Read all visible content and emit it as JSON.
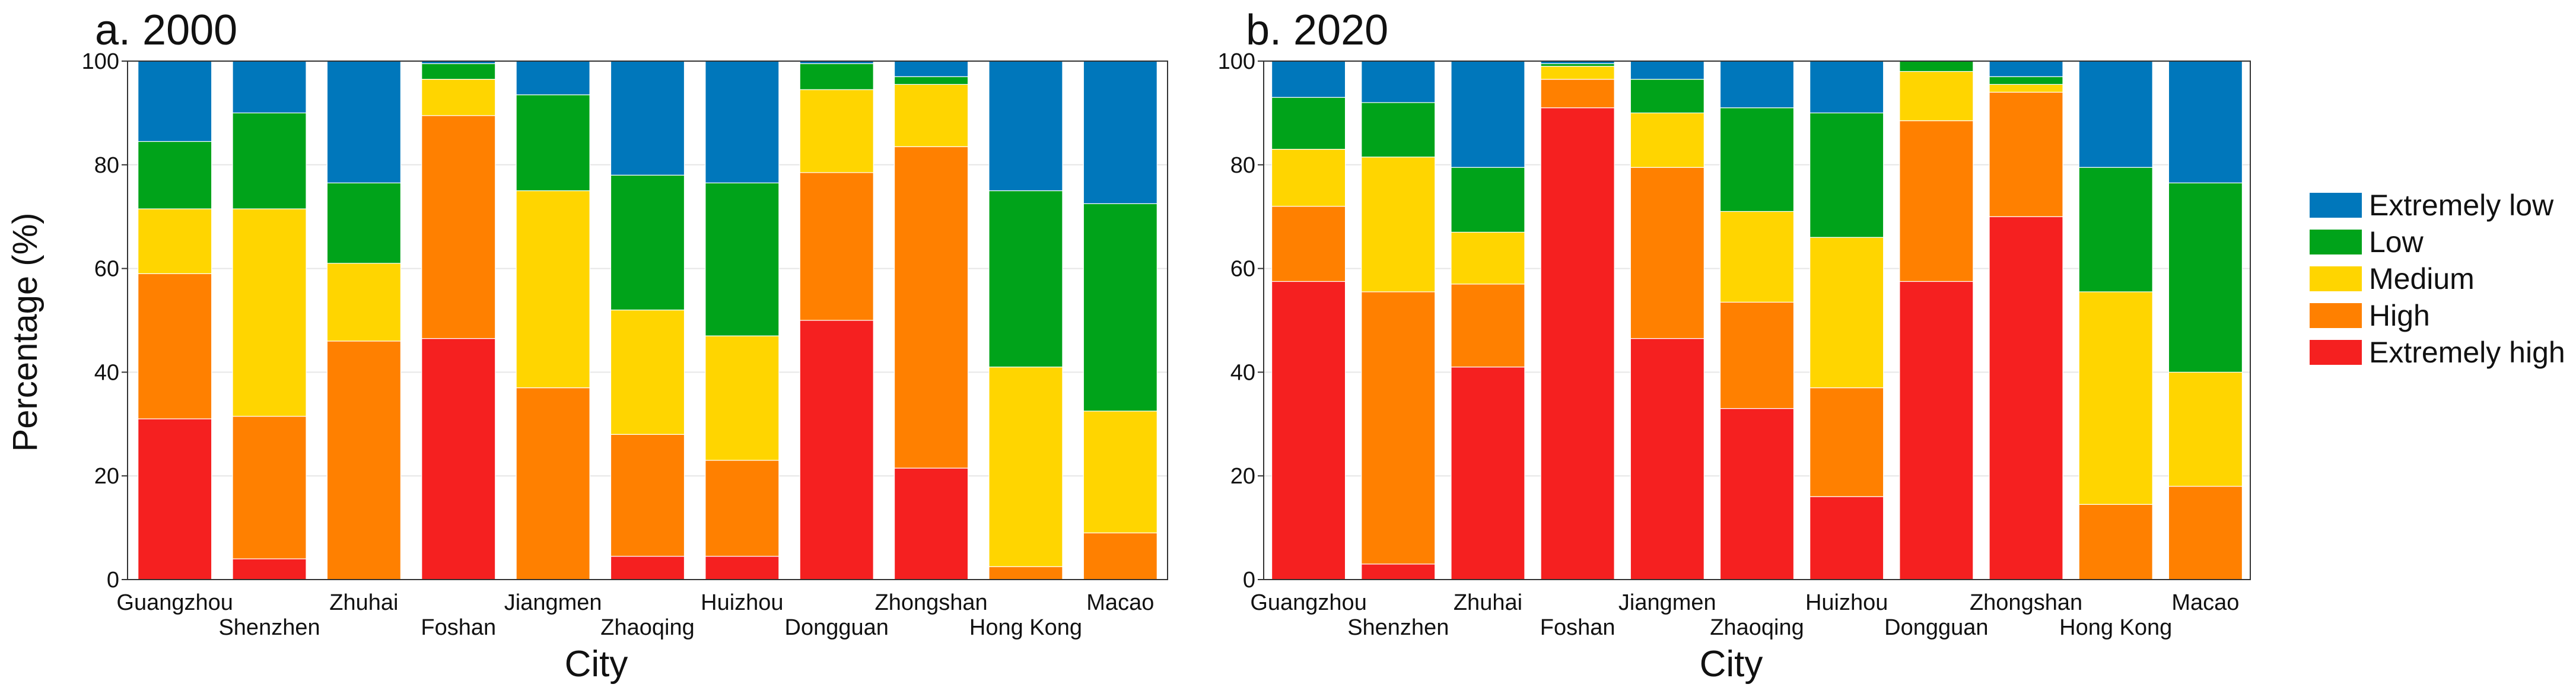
{
  "figure": {
    "ylabel": "Percentage (%)",
    "legend_title": ""
  },
  "legend": [
    {
      "name": "Extremely low",
      "color": "#0077BB"
    },
    {
      "name": "Low",
      "color": "#00A31A"
    },
    {
      "name": "Medium",
      "color": "#FFD500"
    },
    {
      "name": "High",
      "color": "#FF8000"
    },
    {
      "name": "Extremely high",
      "color": "#F52020"
    }
  ],
  "chart_data": [
    {
      "type": "bar",
      "stacked": true,
      "title": "a. 2000",
      "xlabel": "City",
      "ylabel": "Percentage (%)",
      "ylim": [
        0,
        100
      ],
      "yticks": [
        0,
        20,
        40,
        60,
        80,
        100
      ],
      "categories": [
        "Guangzhou",
        "Shenzhen",
        "Zhuhai",
        "Foshan",
        "Jiangmen",
        "Zhaoqing",
        "Huizhou",
        "Dongguan",
        "Zhongshan",
        "Hong Kong",
        "Macao"
      ],
      "series": [
        {
          "name": "Extremely high",
          "color": "#F52020",
          "values": [
            31,
            4,
            0,
            46.5,
            0,
            4.5,
            4.5,
            50,
            21.5,
            0,
            0
          ]
        },
        {
          "name": "High",
          "color": "#FF8000",
          "values": [
            28,
            27.5,
            46,
            43,
            37,
            23.5,
            18.5,
            28.5,
            62,
            2.5,
            9
          ]
        },
        {
          "name": "Medium",
          "color": "#FFD500",
          "values": [
            12.5,
            40,
            15,
            7,
            38,
            24,
            24,
            16,
            12,
            38.5,
            23.5
          ]
        },
        {
          "name": "Low",
          "color": "#00A31A",
          "values": [
            13,
            18.5,
            15.5,
            3,
            18.5,
            26,
            29.5,
            5,
            1.5,
            34,
            40
          ]
        },
        {
          "name": "Extremely low",
          "color": "#0077BB",
          "values": [
            15.5,
            10,
            23.5,
            0.5,
            6.5,
            22,
            23.5,
            0.5,
            3,
            25,
            27.5
          ]
        }
      ]
    },
    {
      "type": "bar",
      "stacked": true,
      "title": "b. 2020",
      "xlabel": "City",
      "ylabel": "",
      "ylim": [
        0,
        100
      ],
      "yticks": [
        0,
        20,
        40,
        60,
        80,
        100
      ],
      "categories": [
        "Guangzhou",
        "Shenzhen",
        "Zhuhai",
        "Foshan",
        "Jiangmen",
        "Zhaoqing",
        "Huizhou",
        "Dongguan",
        "Zhongshan",
        "Hong Kong",
        "Macao"
      ],
      "series": [
        {
          "name": "Extremely high",
          "color": "#F52020",
          "values": [
            57.5,
            3,
            41,
            91,
            46.5,
            33,
            16,
            57.5,
            70,
            0,
            0
          ]
        },
        {
          "name": "High",
          "color": "#FF8000",
          "values": [
            14.5,
            52.5,
            16,
            5.5,
            33,
            20.5,
            21,
            31,
            24,
            14.5,
            18
          ]
        },
        {
          "name": "Medium",
          "color": "#FFD500",
          "values": [
            11,
            26,
            10,
            2.5,
            10.5,
            17.5,
            29,
            9.5,
            1.5,
            41,
            22
          ]
        },
        {
          "name": "Low",
          "color": "#00A31A",
          "values": [
            10,
            10.5,
            12.5,
            0.5,
            6.5,
            20,
            24,
            2,
            1.5,
            24,
            36.5
          ]
        },
        {
          "name": "Extremely low",
          "color": "#0077BB",
          "values": [
            7,
            8,
            20.5,
            0.5,
            3.5,
            9,
            10,
            0,
            3,
            20.5,
            23.5
          ]
        }
      ]
    }
  ]
}
